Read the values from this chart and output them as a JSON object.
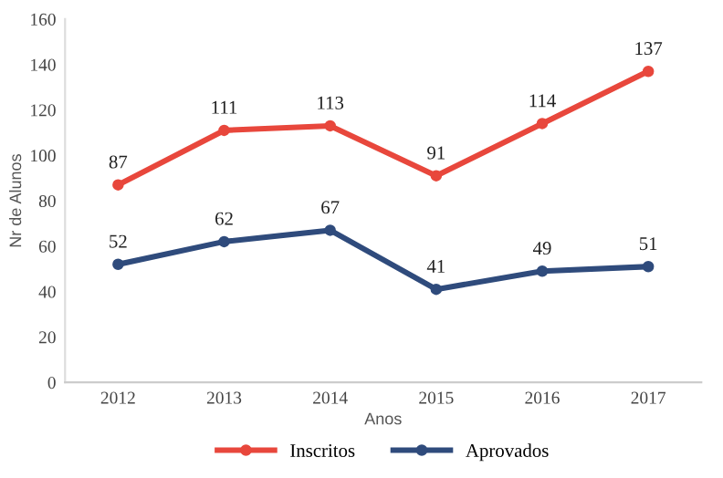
{
  "chart_data": {
    "type": "line",
    "xlabel": "Anos",
    "ylabel": "Nr de Alunos",
    "categories": [
      "2012",
      "2013",
      "2014",
      "2015",
      "2016",
      "2017"
    ],
    "series": [
      {
        "name": "Inscritos",
        "color": "#e8473c",
        "values": [
          87,
          111,
          113,
          91,
          114,
          137
        ]
      },
      {
        "name": "Aprovados",
        "color": "#2f4b7c",
        "values": [
          52,
          62,
          67,
          41,
          49,
          51
        ]
      }
    ],
    "ylim": [
      0,
      160
    ],
    "yticks": [
      0,
      20,
      40,
      60,
      80,
      100,
      120,
      140,
      160
    ],
    "grid": false,
    "legend": "bottom",
    "marker": "circle",
    "line_style": "solid",
    "data_labels": true
  }
}
